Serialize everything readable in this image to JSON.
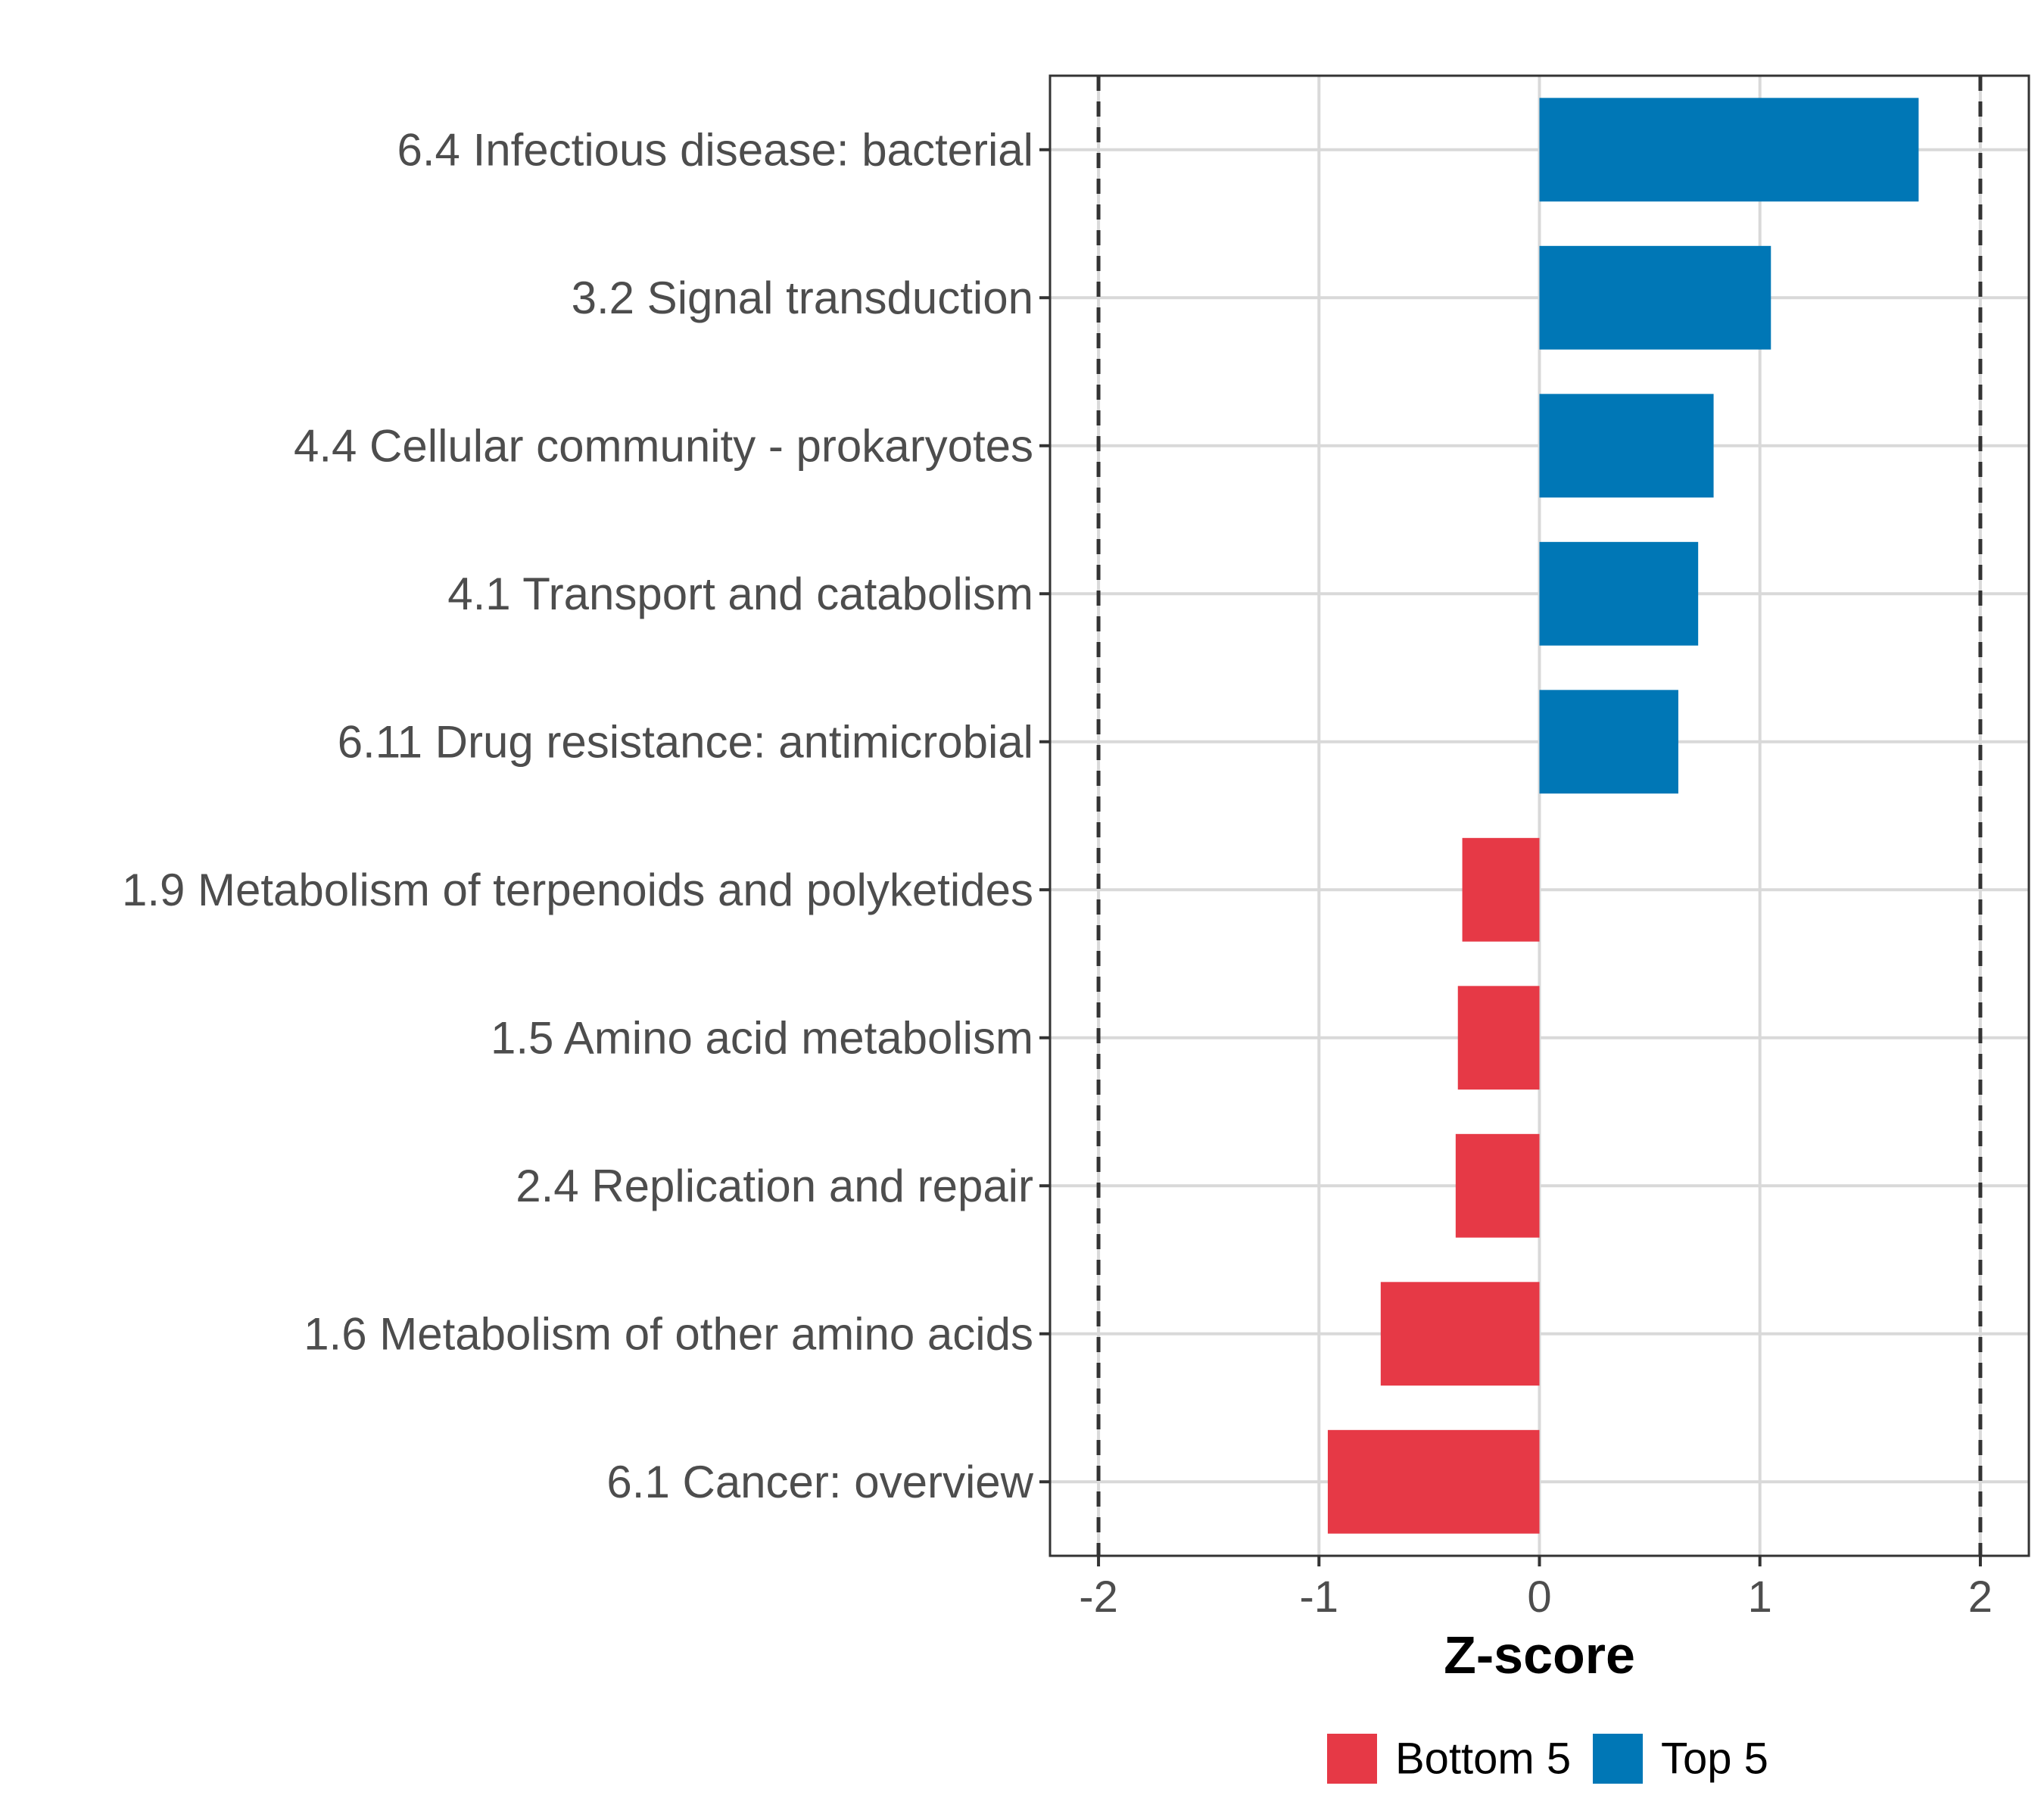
{
  "chart_data": {
    "type": "bar",
    "orientation": "horizontal",
    "categories": [
      "6.4 Infectious disease: bacterial",
      "3.2 Signal transduction",
      "4.4 Cellular community - prokaryotes",
      "4.1 Transport and catabolism",
      "6.11 Drug resistance: antimicrobial",
      "1.9 Metabolism of terpenoids and polyketides",
      "1.5 Amino acid metabolism",
      "2.4 Replication and repair",
      "1.6 Metabolism of other amino acids",
      "6.1 Cancer: overview"
    ],
    "values": [
      1.72,
      1.05,
      0.79,
      0.72,
      0.63,
      -0.35,
      -0.37,
      -0.38,
      -0.72,
      -0.96
    ],
    "groups": [
      "Top 5",
      "Top 5",
      "Top 5",
      "Top 5",
      "Top 5",
      "Bottom 5",
      "Bottom 5",
      "Bottom 5",
      "Bottom 5",
      "Bottom 5"
    ],
    "xlabel": "Z-score",
    "ylabel": "",
    "xlim": [
      -2.22,
      2.22
    ],
    "xticks": [
      -2,
      -1,
      0,
      1,
      2
    ],
    "xtick_labels": [
      "-2",
      "-1",
      "0",
      "1",
      "2"
    ],
    "reference_lines": [
      -2,
      2
    ],
    "grid": true,
    "legend": {
      "position": "bottom",
      "entries": [
        {
          "label": "Bottom 5",
          "color": "#e63946"
        },
        {
          "label": "Top 5",
          "color": "#0077b6"
        }
      ]
    },
    "colors": {
      "Top 5": "#0077b6",
      "Bottom 5": "#e63946"
    }
  }
}
